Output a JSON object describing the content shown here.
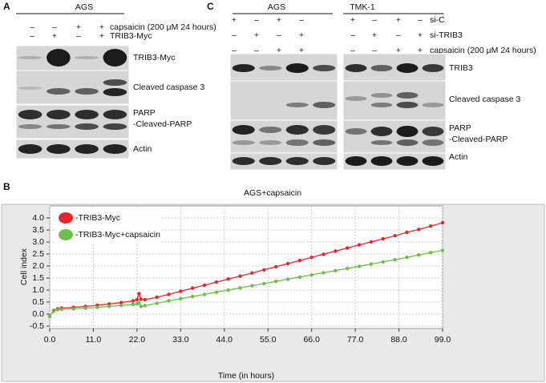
{
  "panel_a": {
    "letter": "A",
    "cell_line": "AGS",
    "rows": [
      {
        "signs": [
          "–",
          "–",
          "+",
          "+"
        ],
        "label": "capsaicin (200 µM 24 hours)"
      },
      {
        "signs": [
          "–",
          "+",
          "–",
          "+"
        ],
        "label": "TRIB3-Myc"
      }
    ],
    "blot_labels": [
      "TRIB3-Myc",
      "Cleaved caspase 3",
      "PARP",
      "-Cleaved-PARP",
      "Actin"
    ]
  },
  "panel_c": {
    "letter": "C",
    "cell_lines": [
      "AGS",
      "TMK-1"
    ],
    "rows": [
      {
        "signs": [
          "+",
          "–",
          "+",
          "–",
          "+",
          "–",
          "+",
          "–"
        ],
        "label": "si-C"
      },
      {
        "signs": [
          "–",
          "+",
          "–",
          "+",
          "–",
          "+",
          "–",
          "+"
        ],
        "label": "si-TRIB3"
      },
      {
        "signs": [
          "–",
          "–",
          "+",
          "+",
          "–",
          "–",
          "+",
          "+"
        ],
        "label": "capsaicin (200 µM 24 hours)"
      }
    ],
    "blot_labels": [
      "TRIB3",
      "Cleaved caspase 3",
      "PARP",
      "-Cleaved-PARP",
      "Actin"
    ]
  },
  "panel_b_letter": "B",
  "chart_data": {
    "type": "line",
    "title": "AGS+capsaicin",
    "xlabel": "Time (in hours)",
    "ylabel": "Cell index",
    "x": [
      0,
      1,
      2,
      3,
      6,
      9,
      12,
      15,
      18,
      21,
      22,
      22.5,
      23,
      24,
      27,
      30,
      33,
      36,
      39,
      42,
      45,
      48,
      51,
      54,
      57,
      60,
      63,
      66,
      69,
      72,
      75,
      78,
      81,
      84,
      87,
      90,
      93,
      96,
      99
    ],
    "series": [
      {
        "name": "-TRIB3-Myc",
        "color": "#e8262a",
        "values": [
          -0.1,
          0.15,
          0.22,
          0.25,
          0.28,
          0.32,
          0.37,
          0.42,
          0.48,
          0.55,
          0.6,
          0.85,
          0.62,
          0.6,
          0.7,
          0.82,
          0.95,
          1.08,
          1.2,
          1.33,
          1.46,
          1.58,
          1.71,
          1.84,
          1.97,
          2.1,
          2.23,
          2.36,
          2.49,
          2.62,
          2.75,
          2.88,
          3.0,
          3.13,
          3.26,
          3.4,
          3.52,
          3.66,
          3.8
        ]
      },
      {
        "name": "-TRIB3-Myc+capsaicin",
        "color": "#6cc04a",
        "values": [
          -0.1,
          0.12,
          0.18,
          0.2,
          0.22,
          0.25,
          0.28,
          0.32,
          0.36,
          0.4,
          0.43,
          0.47,
          0.32,
          0.35,
          0.45,
          0.55,
          0.64,
          0.73,
          0.82,
          0.91,
          1.0,
          1.09,
          1.18,
          1.27,
          1.36,
          1.45,
          1.54,
          1.63,
          1.72,
          1.81,
          1.9,
          1.99,
          2.08,
          2.17,
          2.26,
          2.36,
          2.46,
          2.56,
          2.65
        ]
      }
    ],
    "xlim": [
      0,
      99
    ],
    "xticks": [
      {
        "value": 0,
        "label": "0.0"
      },
      {
        "value": 11,
        "label": "11.0"
      },
      {
        "value": 22,
        "label": "22.0"
      },
      {
        "value": 33,
        "label": "33.0"
      },
      {
        "value": 44,
        "label": "44.0"
      },
      {
        "value": 55,
        "label": "55.0"
      },
      {
        "value": 66,
        "label": "66.0"
      },
      {
        "value": 77,
        "label": "77.0"
      },
      {
        "value": 88,
        "label": "88.0"
      },
      {
        "value": 99,
        "label": "99.0"
      }
    ],
    "ylim": [
      -0.6,
      4.5
    ],
    "yticks": [
      -0.5,
      {
        "value": 0,
        "label": "0.0"
      },
      0.5,
      {
        "value": 1,
        "label": "1.0"
      },
      1.5,
      {
        "value": 2,
        "label": "2.0"
      },
      2.5,
      {
        "value": 3,
        "label": "3.0"
      },
      3.5,
      {
        "value": 4,
        "label": "4.0"
      }
    ],
    "grid": true,
    "legend": "upper left"
  }
}
